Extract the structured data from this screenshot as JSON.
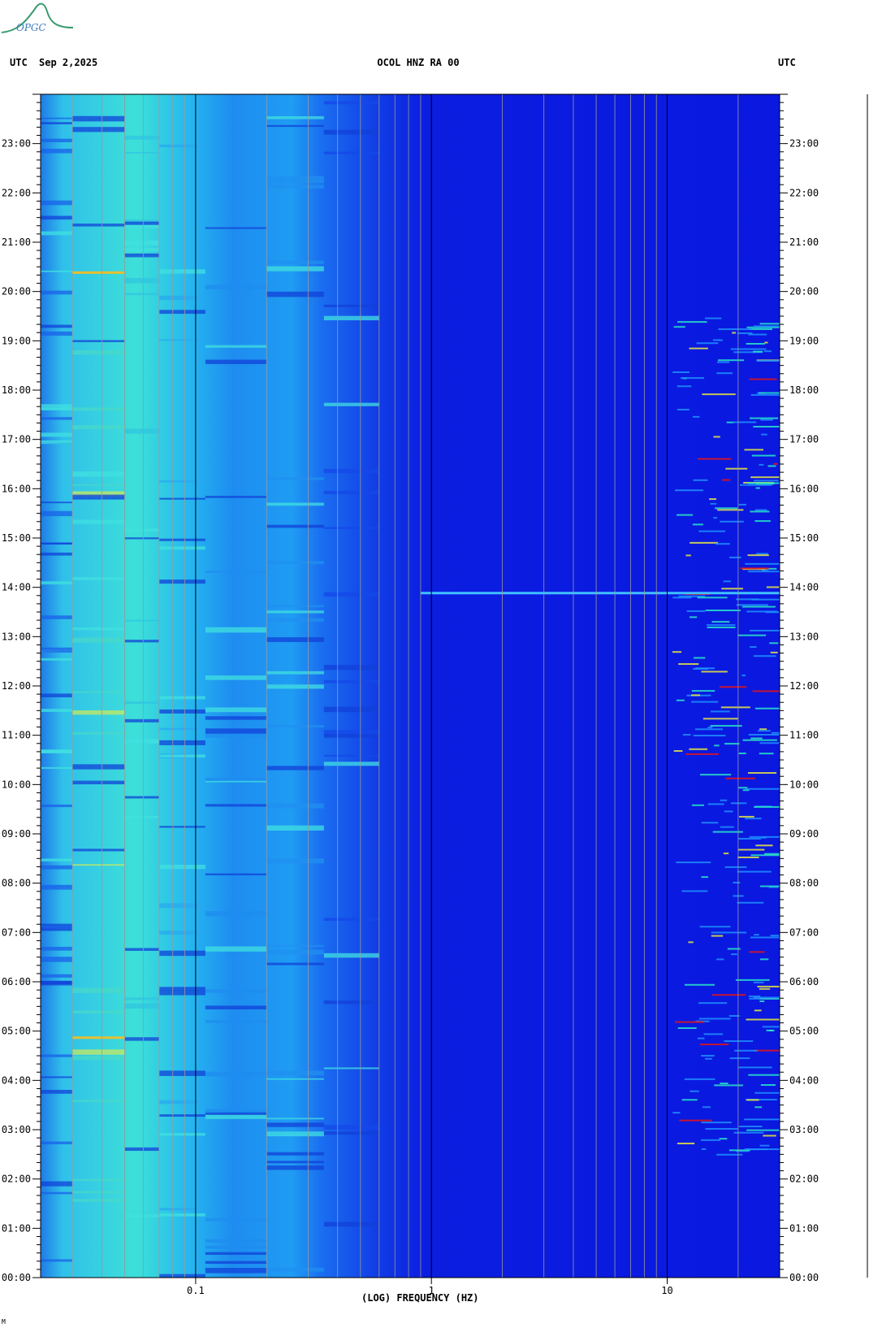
{
  "header": {
    "left_tz": "UTC",
    "date": "Sep 2,2025",
    "station": "OCOL HNZ RA 00",
    "right_tz": "UTC"
  },
  "logo": {
    "text": "OPGC",
    "color": "#3a9a70"
  },
  "footer": {
    "mark": "M"
  },
  "chart_data": {
    "type": "heatmap",
    "title": "OCOL HNZ RA 00",
    "xlabel": "(LOG) FREQUENCY (HZ)",
    "x_scale": "log",
    "xlim": [
      0.022,
      30
    ],
    "x_ticks": [
      {
        "value": 0.1,
        "label": "0.1"
      },
      {
        "value": 1,
        "label": "1"
      },
      {
        "value": 10,
        "label": "10"
      }
    ],
    "ylim": [
      "00:00",
      "24:00"
    ],
    "y_ticks": [
      "00:00",
      "01:00",
      "02:00",
      "03:00",
      "04:00",
      "05:00",
      "06:00",
      "07:00",
      "08:00",
      "09:00",
      "10:00",
      "11:00",
      "12:00",
      "13:00",
      "14:00",
      "15:00",
      "16:00",
      "17:00",
      "18:00",
      "19:00",
      "20:00",
      "21:00",
      "22:00",
      "23:00"
    ],
    "grid": true,
    "colors": {
      "low": "#0a14e6",
      "mid": "#1e9bff",
      "cyan": "#28e6e6",
      "yellow": "#e6e640",
      "high": "#e61414"
    },
    "notable_events": [
      {
        "time": "13:53",
        "freq_range": [
          0.9,
          30
        ],
        "note": "broadband line"
      },
      {
        "time": "20:23",
        "freq_range": [
          0.03,
          0.05
        ]
      },
      {
        "time": "04:52",
        "freq_range": [
          0.03,
          0.05
        ]
      }
    ]
  }
}
